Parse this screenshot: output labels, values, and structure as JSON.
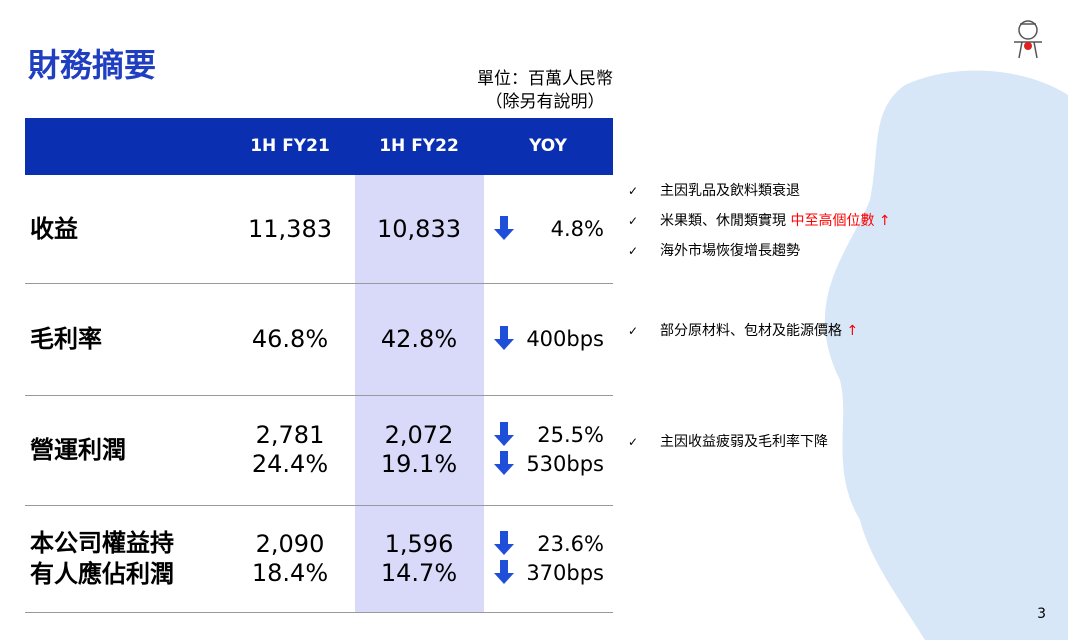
{
  "header": {
    "title": "財務摘要",
    "unit": "單位：百萬人民幣",
    "unit_note": "（除另有說明）"
  },
  "table": {
    "columns": [
      "1H FY21",
      "1H FY22",
      "YOY"
    ],
    "rows": [
      {
        "label": [
          "收益"
        ],
        "fy21": [
          "11,383"
        ],
        "fy22": [
          "10,833"
        ],
        "yoy": [
          "4.8%"
        ],
        "notes": [
          {
            "text": "主因乳品及飲料類衰退"
          },
          {
            "text": "米果類、休閒類實現 ",
            "highlight": "中至高個位數 ↑"
          },
          {
            "text": "海外市場恢復增長趨勢"
          }
        ]
      },
      {
        "label": [
          "毛利率"
        ],
        "fy21": [
          "46.8%"
        ],
        "fy22": [
          "42.8%"
        ],
        "yoy": [
          "400bps"
        ],
        "notes": [
          {
            "text": "部分原材料、包材及能源價格 ",
            "highlight": "↑"
          }
        ]
      },
      {
        "label": [
          "營運利潤"
        ],
        "fy21": [
          "2,781",
          "24.4%"
        ],
        "fy22": [
          "2,072",
          "19.1%"
        ],
        "yoy": [
          "25.5%",
          "530bps"
        ],
        "notes": [
          {
            "text": "主因收益疲弱及毛利率下降"
          }
        ]
      },
      {
        "label": [
          "本公司權益持",
          "有人應佔利潤"
        ],
        "fy21": [
          "2,090",
          "18.4%"
        ],
        "fy22": [
          "1,596",
          "14.7%"
        ],
        "yoy": [
          "23.6%",
          "370bps"
        ],
        "notes": []
      }
    ]
  },
  "footer": {
    "page_number": "3"
  }
}
